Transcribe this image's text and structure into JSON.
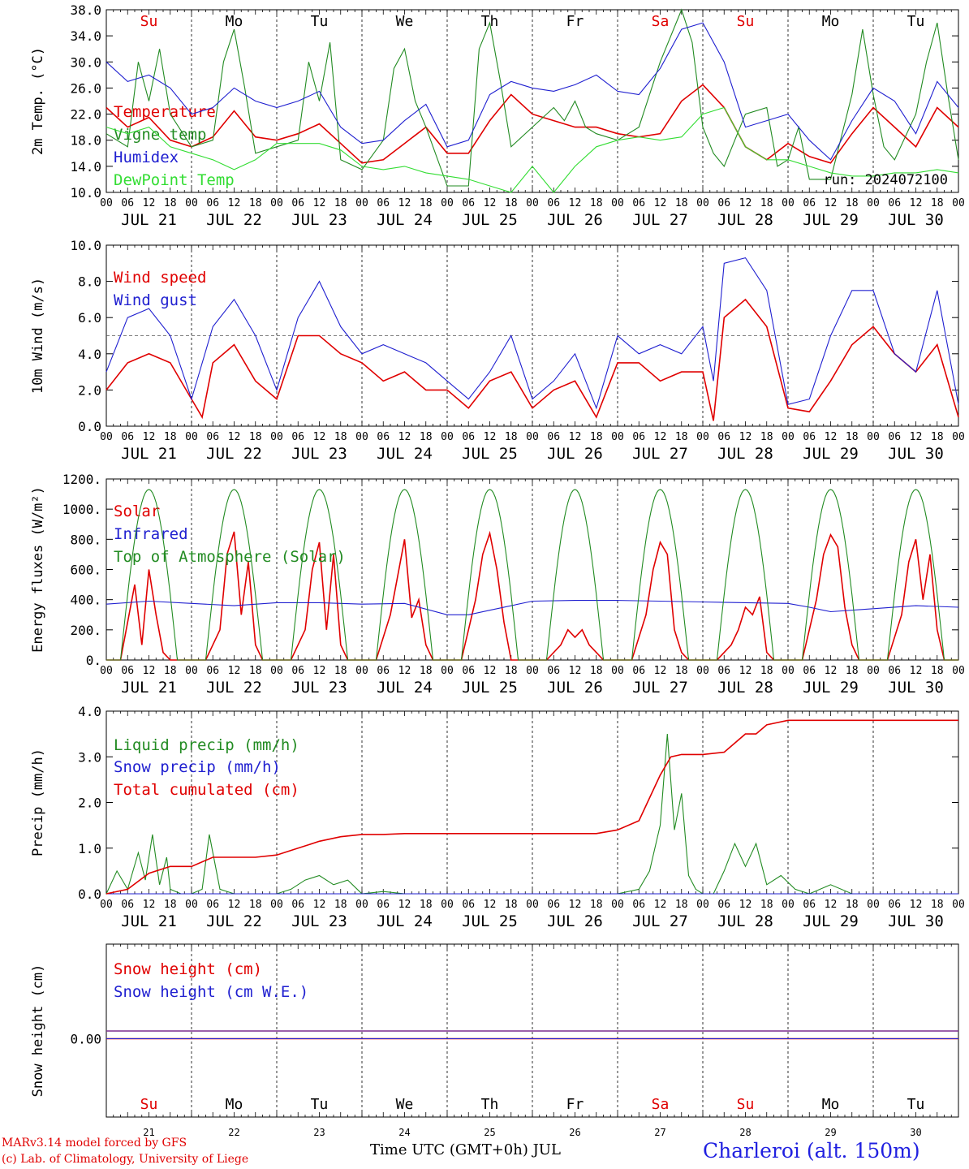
{
  "run_label": "run: 2024072100",
  "footer": {
    "model": "MARv3.14 model forced by GFS",
    "lab": "(c) Lab. of Climatology, University of Liege",
    "time_axis": "Time UTC (GMT+0h) JUL",
    "station": "Charleroi (alt. 150m)"
  },
  "weekdays": [
    "Su",
    "Mo",
    "Tu",
    "We",
    "Th",
    "Fr",
    "Sa",
    "Su",
    "Mo",
    "Tu"
  ],
  "weekend_color": "#e00000",
  "date_labels": [
    "JUL 21",
    "JUL 22",
    "JUL 23",
    "JUL 24",
    "JUL 25",
    "JUL 26",
    "JUL 27",
    "JUL 28",
    "JUL 29",
    "JUL 30"
  ],
  "day_numbers": [
    "21",
    "22",
    "23",
    "24",
    "25",
    "26",
    "27",
    "28",
    "29",
    "30"
  ],
  "hour_labels": [
    "00",
    "06",
    "12",
    "18"
  ],
  "chart_data": [
    {
      "type": "line",
      "ylabel": "2m Temp. (°C)",
      "ylim": [
        10,
        38
      ],
      "yticks": [
        "10.0",
        "14.0",
        "18.0",
        "22.0",
        "26.0",
        "30.0",
        "34.0",
        "38.0"
      ],
      "x_unit": "hours from 2024-07-21 00 UTC",
      "series": [
        {
          "name": "Temperature",
          "color": "#e00000",
          "x": [
            0,
            6,
            12,
            18,
            24,
            30,
            36,
            42,
            48,
            54,
            60,
            66,
            72,
            78,
            84,
            90,
            96,
            102,
            108,
            114,
            120,
            126,
            132,
            138,
            144,
            150,
            156,
            162,
            168,
            174,
            180,
            186,
            192,
            198,
            204,
            210,
            216,
            222,
            228,
            234,
            240
          ],
          "values": [
            23,
            20,
            21.5,
            18,
            17,
            18.5,
            22.5,
            18.5,
            18,
            19,
            20.5,
            17.5,
            14.5,
            15,
            17.5,
            20,
            16,
            16,
            21,
            25,
            22,
            21,
            20,
            20,
            19,
            18.5,
            19,
            24,
            26.5,
            23,
            17,
            15,
            17.5,
            15.5,
            14.5,
            19,
            23,
            20,
            17,
            23,
            20
          ]
        },
        {
          "name": "Vigne temp",
          "color": "#228b22",
          "x": [
            0,
            6,
            9,
            12,
            15,
            18,
            24,
            30,
            33,
            36,
            39,
            42,
            48,
            54,
            57,
            60,
            63,
            66,
            72,
            78,
            81,
            84,
            87,
            90,
            96,
            102,
            105,
            108,
            111,
            114,
            120,
            126,
            129,
            132,
            135,
            138,
            144,
            150,
            156,
            162,
            165,
            168,
            171,
            174,
            180,
            186,
            189,
            192,
            195,
            198,
            204,
            210,
            213,
            216,
            219,
            222,
            228,
            231,
            234,
            237,
            240
          ],
          "values": [
            19,
            17,
            30,
            24,
            32,
            22,
            17,
            18,
            30,
            35,
            26,
            16,
            17,
            18,
            30,
            24,
            33,
            15,
            13.5,
            18,
            29,
            32,
            24,
            20,
            11,
            11,
            32,
            36,
            27,
            17,
            20,
            23,
            21,
            24,
            20,
            19,
            18,
            20,
            30,
            38,
            33,
            20,
            16,
            14,
            22,
            23,
            14,
            15,
            20,
            12,
            12,
            25,
            35,
            25,
            17,
            15,
            22,
            30,
            36,
            25,
            15
          ]
        },
        {
          "name": "Humidex",
          "color": "#2020d0",
          "x": [
            0,
            6,
            12,
            18,
            24,
            30,
            36,
            42,
            48,
            54,
            60,
            66,
            72,
            78,
            84,
            90,
            96,
            102,
            108,
            114,
            120,
            126,
            132,
            138,
            144,
            150,
            156,
            162,
            168,
            174,
            180,
            186,
            192,
            198,
            204,
            210,
            216,
            222,
            228,
            234,
            240
          ],
          "values": [
            30,
            27,
            28,
            26,
            22,
            23,
            26,
            24,
            23,
            24,
            25.5,
            20,
            17.5,
            18,
            21,
            23.5,
            17,
            18,
            25,
            27,
            26,
            25.5,
            26.5,
            28,
            25.5,
            25,
            29,
            35,
            36,
            30,
            20,
            21,
            22,
            18,
            15,
            21,
            26,
            24,
            19,
            27,
            23
          ]
        },
        {
          "name": "DewPoint Temp",
          "color": "#33dd33",
          "x": [
            0,
            6,
            12,
            18,
            24,
            30,
            36,
            42,
            48,
            54,
            60,
            66,
            72,
            78,
            84,
            90,
            96,
            102,
            108,
            114,
            120,
            126,
            132,
            138,
            144,
            150,
            156,
            162,
            168,
            174,
            180,
            186,
            192,
            198,
            204,
            210,
            216,
            222,
            228,
            234,
            240
          ],
          "values": [
            20,
            19,
            20,
            17,
            16,
            15,
            13.5,
            15,
            17.5,
            17.5,
            17.5,
            16.5,
            14,
            13.5,
            14,
            13,
            12.5,
            12,
            11,
            10,
            14,
            10,
            14,
            17,
            18,
            18.5,
            18,
            18.5,
            22,
            23,
            17,
            15,
            15,
            14,
            13,
            12.5,
            12.5,
            13,
            13,
            13.5,
            13
          ]
        }
      ]
    },
    {
      "type": "line",
      "ylabel": "10m Wind (m/s)",
      "ylim": [
        0,
        10
      ],
      "yticks": [
        "0.0",
        "2.0",
        "4.0",
        "6.0",
        "8.0",
        "10.0"
      ],
      "reference_line": 5,
      "series": [
        {
          "name": "Wind speed",
          "color": "#e00000",
          "x": [
            0,
            6,
            12,
            18,
            24,
            27,
            30,
            36,
            42,
            48,
            54,
            60,
            66,
            72,
            78,
            84,
            90,
            96,
            102,
            108,
            114,
            120,
            126,
            132,
            138,
            144,
            150,
            156,
            162,
            168,
            171,
            174,
            180,
            186,
            192,
            198,
            204,
            210,
            216,
            222,
            228,
            234,
            240
          ],
          "values": [
            2,
            3.5,
            4,
            3.5,
            1.5,
            0.5,
            3.5,
            4.5,
            2.5,
            1.5,
            5,
            5,
            4,
            3.5,
            2.5,
            3,
            2,
            2,
            1,
            2.5,
            3,
            1,
            2,
            2.5,
            0.5,
            3.5,
            3.5,
            2.5,
            3,
            3,
            0.3,
            6,
            7,
            5.5,
            1,
            0.8,
            2.5,
            4.5,
            5.5,
            4,
            3,
            4.5,
            0.5
          ]
        },
        {
          "name": "Wind gust",
          "color": "#2020d0",
          "x": [
            0,
            6,
            12,
            18,
            24,
            30,
            36,
            42,
            48,
            54,
            60,
            66,
            72,
            78,
            84,
            90,
            96,
            102,
            108,
            114,
            120,
            126,
            132,
            138,
            144,
            150,
            156,
            162,
            168,
            171,
            174,
            180,
            186,
            192,
            198,
            204,
            210,
            216,
            222,
            228,
            234,
            240
          ],
          "values": [
            3,
            6,
            6.5,
            5,
            1.5,
            5.5,
            7,
            5,
            2,
            6,
            8,
            5.5,
            4,
            4.5,
            4,
            3.5,
            2.5,
            1.5,
            3,
            5,
            1.5,
            2.5,
            4,
            1,
            5,
            4,
            4.5,
            4,
            5.5,
            2.5,
            9,
            9.3,
            7.5,
            1.2,
            1.5,
            5,
            7.5,
            7.5,
            4,
            3,
            7.5,
            1.2
          ]
        }
      ]
    },
    {
      "type": "line",
      "ylabel": "Energy fluxes (W/m²)",
      "ylim": [
        0,
        1200
      ],
      "yticks": [
        "0.",
        "200.",
        "400.",
        "600.",
        "800.",
        "1000.",
        "1200."
      ],
      "series": [
        {
          "name": "Solar",
          "color": "#e00000",
          "x": [
            0,
            4,
            8,
            10,
            12,
            14,
            16,
            18,
            20,
            24,
            28,
            32,
            34,
            36,
            38,
            40,
            42,
            44,
            48,
            52,
            56,
            58,
            60,
            62,
            64,
            66,
            68,
            72,
            76,
            80,
            82,
            84,
            86,
            88,
            90,
            92,
            96,
            100,
            104,
            106,
            108,
            110,
            112,
            114,
            116,
            120,
            124,
            128,
            130,
            132,
            134,
            136,
            138,
            140,
            144,
            148,
            152,
            154,
            156,
            158,
            160,
            162,
            164,
            168,
            172,
            176,
            178,
            180,
            182,
            184,
            186,
            188,
            192,
            196,
            200,
            202,
            204,
            206,
            208,
            210,
            212,
            216,
            220,
            224,
            226,
            228,
            230,
            232,
            234,
            236,
            240
          ],
          "values": [
            0,
            0,
            500,
            100,
            600,
            300,
            50,
            0,
            0,
            0,
            0,
            200,
            700,
            850,
            300,
            650,
            100,
            0,
            0,
            0,
            200,
            600,
            780,
            200,
            700,
            100,
            0,
            0,
            0,
            300,
            550,
            800,
            280,
            400,
            100,
            0,
            0,
            0,
            400,
            700,
            840,
            600,
            250,
            0,
            0,
            0,
            0,
            100,
            200,
            150,
            200,
            100,
            50,
            0,
            0,
            0,
            300,
            600,
            780,
            700,
            200,
            50,
            0,
            0,
            0,
            100,
            200,
            350,
            300,
            420,
            50,
            0,
            0,
            0,
            400,
            700,
            830,
            750,
            350,
            100,
            0,
            0,
            0,
            300,
            650,
            800,
            400,
            700,
            200,
            0,
            0
          ]
        },
        {
          "name": "Infrared",
          "color": "#2020d0",
          "x": [
            0,
            12,
            24,
            36,
            48,
            60,
            72,
            84,
            96,
            102,
            108,
            120,
            132,
            144,
            156,
            168,
            180,
            192,
            198,
            204,
            216,
            228,
            240
          ],
          "values": [
            370,
            390,
            375,
            360,
            380,
            380,
            370,
            375,
            300,
            300,
            330,
            390,
            395,
            395,
            390,
            385,
            380,
            375,
            350,
            320,
            340,
            360,
            350
          ]
        },
        {
          "name": "Top of Atmosphere (Solar)",
          "color": "#228b22",
          "x": [],
          "values": [],
          "peak": 1130,
          "sunrise_h": 4,
          "sunset_h": 20
        }
      ]
    },
    {
      "type": "line",
      "ylabel": "Precip (mm/h)",
      "ylim": [
        0,
        4
      ],
      "yticks": [
        "0.0",
        "1.0",
        "2.0",
        "3.0",
        "4.0"
      ],
      "series": [
        {
          "name": "Liquid precip (mm/h)",
          "color": "#228b22",
          "x": [
            0,
            3,
            6,
            9,
            11,
            13,
            15,
            17,
            18,
            21,
            24,
            27,
            29,
            32,
            36,
            42,
            48,
            52,
            56,
            60,
            64,
            68,
            72,
            78,
            84,
            90,
            144,
            150,
            153,
            156,
            158,
            160,
            162,
            164,
            166,
            168,
            171,
            174,
            177,
            180,
            183,
            186,
            190,
            194,
            198,
            204,
            210,
            240
          ],
          "values": [
            0,
            0.5,
            0.1,
            0.9,
            0.3,
            1.3,
            0.2,
            0.8,
            0.1,
            0,
            0,
            0.1,
            1.3,
            0.1,
            0,
            0,
            0,
            0.1,
            0.3,
            0.4,
            0.2,
            0.3,
            0,
            0.05,
            0,
            0,
            0,
            0.1,
            0.5,
            1.5,
            3.5,
            1.4,
            2.2,
            0.4,
            0.1,
            0,
            0,
            0.5,
            1.1,
            0.6,
            1.1,
            0.2,
            0.4,
            0.1,
            0,
            0.2,
            0,
            0
          ]
        },
        {
          "name": "Snow precip (mm/h)",
          "color": "#2020d0",
          "x": [
            0,
            240
          ],
          "values": [
            0,
            0
          ]
        },
        {
          "name": "Total cumulated (cm)",
          "color": "#e00000",
          "x": [
            0,
            6,
            12,
            18,
            24,
            30,
            36,
            42,
            48,
            54,
            60,
            66,
            72,
            78,
            84,
            96,
            120,
            138,
            144,
            150,
            156,
            159,
            162,
            168,
            174,
            180,
            183,
            186,
            192,
            240
          ],
          "values": [
            0,
            0.1,
            0.45,
            0.6,
            0.6,
            0.8,
            0.8,
            0.8,
            0.85,
            1.0,
            1.15,
            1.25,
            1.3,
            1.3,
            1.32,
            1.32,
            1.32,
            1.32,
            1.4,
            1.6,
            2.6,
            3.0,
            3.05,
            3.05,
            3.1,
            3.5,
            3.5,
            3.7,
            3.8,
            3.8
          ]
        }
      ]
    },
    {
      "type": "line",
      "ylabel": "Snow height (cm)",
      "yticks": [
        "0.00"
      ],
      "series": [
        {
          "name": "Snow height (cm)",
          "color": "#e00000",
          "x": [
            0,
            240
          ],
          "values": [
            0,
            0
          ]
        },
        {
          "name": "Snow height (cm W.E.)",
          "color": "#2020d0",
          "x": [
            0,
            240
          ],
          "values": [
            0,
            0
          ]
        }
      ]
    }
  ]
}
